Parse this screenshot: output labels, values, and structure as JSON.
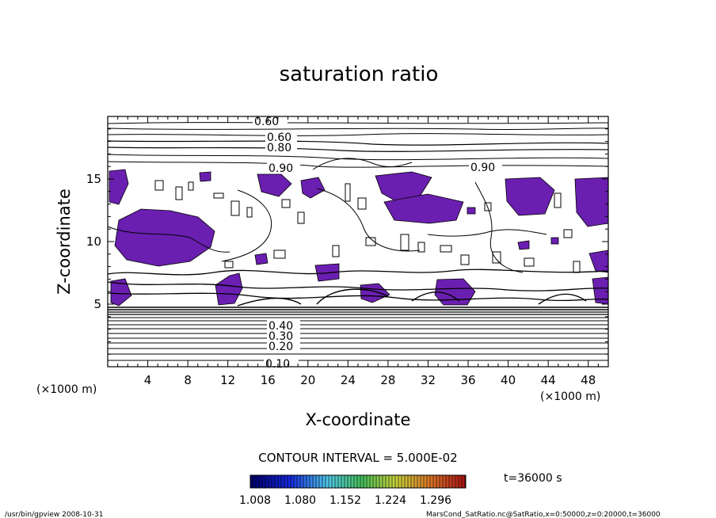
{
  "chart_data": {
    "type": "heatmap",
    "title": "saturation ratio",
    "xlabel": "X-coordinate",
    "ylabel": "Z-coordinate",
    "x_unit": "(×1000 m)",
    "x_unit_right": "(×1000 m)",
    "xlim": [
      0,
      50
    ],
    "ylim": [
      0,
      20
    ],
    "x_ticks": [
      "4",
      "8",
      "12",
      "16",
      "20",
      "24",
      "28",
      "32",
      "36",
      "40",
      "44",
      "48"
    ],
    "y_ticks": [
      "5",
      "10",
      "15"
    ],
    "contour_labels": [
      "0.60",
      "0.60",
      "0.80",
      "0.90",
      "0.90",
      "0.40",
      "0.30",
      "0.20",
      "0.10"
    ],
    "contour_interval": "CONTOUR INTERVAL = 5.000E-02",
    "time_label": "t=36000 s",
    "colorbar_ticks": [
      "1.008",
      "1.080",
      "1.152",
      "1.224",
      "1.296"
    ],
    "fill_color": "#6a1fb0",
    "footer_left": "/usr/bin/gpview   2008-10-31",
    "footer_right": "MarsCond_SatRatio.nc@SatRatio,x=0:50000,z=0:20000,t=36000"
  }
}
